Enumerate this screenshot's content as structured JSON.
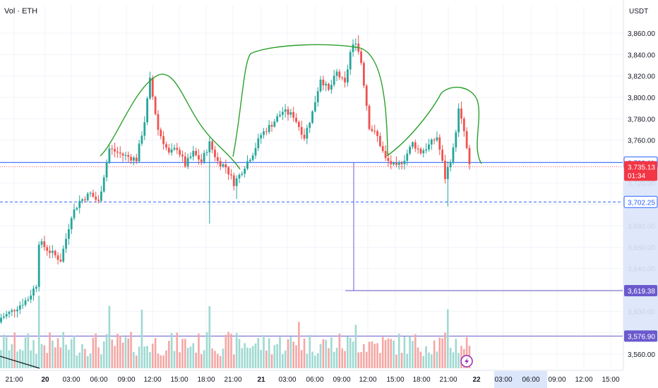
{
  "header": {
    "indicator_label": "Vol · ETH",
    "currency": "USDT"
  },
  "colors": {
    "up": "#26a69a",
    "down": "#ef5350",
    "vol_up": "#9fd9d2",
    "vol_down": "#f4a7a5",
    "pattern": "#2ca02c",
    "blue_line": "#2962ff",
    "purple_line": "#6a5acd",
    "price_tag": "#f23645",
    "grid": "#f0f3fa",
    "axis_text": "#131722"
  },
  "chart_data": {
    "type": "candlestick",
    "symbol": "ETH",
    "quote": "USDT",
    "timeframe_minutes": 30,
    "y_axis": {
      "range": [
        3550,
        3875
      ],
      "ticks": [
        3560,
        3580,
        3600,
        3620,
        3640,
        3660,
        3680,
        3700,
        3720,
        3740,
        3760,
        3780,
        3800,
        3820,
        3840,
        3860
      ],
      "tick_labels": [
        "3,560.00",
        "3,580.00",
        "3,600.00",
        "3,620.00",
        "3,640.00",
        "3,660.00",
        "3,680.00",
        "3,700.00",
        "3,720.00",
        "3,740.00",
        "3,760.00",
        "3,780.00",
        "3,800.00",
        "3,820.00",
        "3,840.00",
        "3,860.00"
      ]
    },
    "x_axis": {
      "tick_labels": [
        "21:00",
        "20",
        "03:00",
        "06:00",
        "09:00",
        "12:00",
        "15:00",
        "18:00",
        "21:00",
        "21",
        "03:00",
        "06:00",
        "09:00",
        "12:00",
        "15:00",
        "18:00",
        "21:00",
        "22",
        "03:00",
        "06:00",
        "09:00",
        "12:00",
        "15:00"
      ],
      "bold_labels": [
        "20",
        "21",
        "22"
      ],
      "highlighted_labels": [
        "03:00",
        "06:00"
      ]
    },
    "price_labels": [
      {
        "text": "3,739.11",
        "value": 3739.11,
        "style": "blue"
      },
      {
        "text": "3,735.13",
        "value": 3735.13,
        "style": "last"
      },
      {
        "text": "01:34",
        "value": 3727.5,
        "style": "countdown"
      },
      {
        "text": "3,702.25",
        "value": 3702.25,
        "style": "blue-dashed"
      },
      {
        "text": "3,619.38",
        "value": 3619.38,
        "style": "purple"
      },
      {
        "text": "3,576.90",
        "value": 3576.9,
        "style": "purple"
      }
    ],
    "horizontal_lines": [
      {
        "value": 3739.11,
        "style": "blue-solid"
      },
      {
        "value": 3735.13,
        "style": "red-dotted"
      },
      {
        "value": 3702.25,
        "style": "blue-dashed"
      },
      {
        "value": 3576.9,
        "style": "purple-solid"
      }
    ],
    "volume_ylim": [
      0,
      100
    ],
    "candles": []
  }
}
